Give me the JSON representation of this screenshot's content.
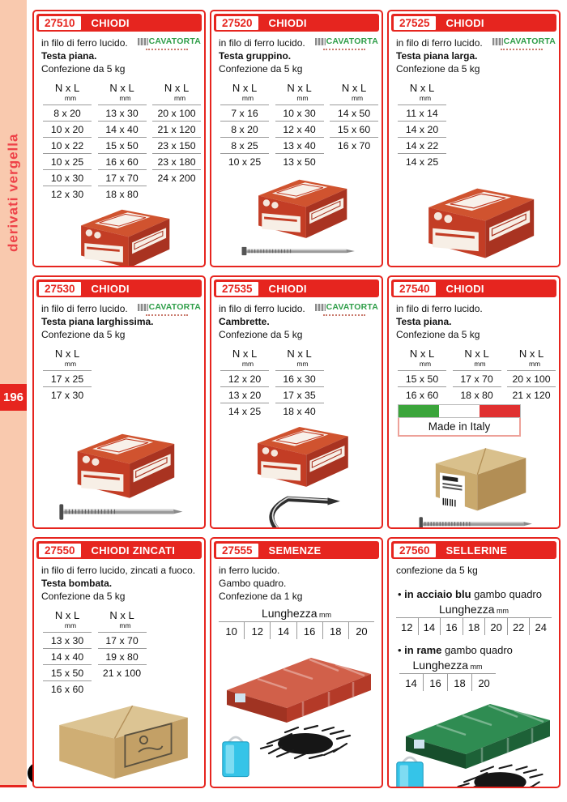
{
  "page": {
    "number": "196",
    "sidebar_label": "derivati vergella",
    "logo_letter": "C"
  },
  "brand": {
    "name": "CAVATORTA"
  },
  "labels": {
    "nxl": "N x L",
    "mm": "mm"
  },
  "cells": [
    {
      "code": "27510",
      "title": "CHIODI",
      "desc": [
        {
          "t": "in filo di ferro lucido.",
          "b": false
        },
        {
          "t": "Testa piana.",
          "b": true
        },
        {
          "t": "Confezione da 5 kg",
          "b": false
        }
      ],
      "size_cols": [
        [
          "8 x 20",
          "10 x 20",
          "10 x 22",
          "10 x 25",
          "10 x 30",
          "12 x 30"
        ],
        [
          "13 x 30",
          "14 x 40",
          "15 x 50",
          "16 x 60",
          "17 x 70",
          "18 x 80"
        ],
        [
          "20 x 100",
          "21 x 120",
          "23 x 150",
          "23 x 180",
          "24 x 200"
        ]
      ]
    },
    {
      "code": "27520",
      "title": "CHIODI",
      "desc": [
        {
          "t": "in filo di ferro lucido.",
          "b": false
        },
        {
          "t": "Testa gruppino.",
          "b": true
        },
        {
          "t": "Confezione da 5 kg",
          "b": false
        }
      ],
      "size_cols": [
        [
          "7 x 16",
          "8 x 20",
          "8 x 25",
          "10 x 25"
        ],
        [
          "10 x 30",
          "12 x 40",
          "13 x 40",
          "13 x 50"
        ],
        [
          "14 x 50",
          "15 x 60",
          "16 x 70"
        ]
      ]
    },
    {
      "code": "27525",
      "title": "CHIODI",
      "desc": [
        {
          "t": "in filo di ferro lucido.",
          "b": false
        },
        {
          "t": "Testa piana larga.",
          "b": true
        },
        {
          "t": "Confezione da 5 kg",
          "b": false
        }
      ],
      "size_cols": [
        [
          "11 x 14",
          "14 x 20",
          "14 x 22",
          "14 x 25"
        ]
      ]
    },
    {
      "code": "27530",
      "title": "CHIODI",
      "desc": [
        {
          "t": "in filo di ferro lucido.",
          "b": false
        },
        {
          "t": "Testa piana larghissima.",
          "b": true
        },
        {
          "t": "Confezione da 5 kg",
          "b": false
        }
      ],
      "size_cols": [
        [
          "17 x 25",
          "17 x 30"
        ]
      ]
    },
    {
      "code": "27535",
      "title": "CHIODI",
      "desc": [
        {
          "t": "in filo di ferro lucido.",
          "b": false
        },
        {
          "t": "Cambrette.",
          "b": true
        },
        {
          "t": "Confezione da 5 kg",
          "b": false
        }
      ],
      "size_cols": [
        [
          "12 x 20",
          "13 x 20",
          "14 x 25"
        ],
        [
          "16 x 30",
          "17 x 35",
          "18 x 40"
        ]
      ]
    },
    {
      "code": "27540",
      "title": "CHIODI",
      "desc": [
        {
          "t": "in filo di ferro lucido.",
          "b": false
        },
        {
          "t": "Testa piana.",
          "b": true
        },
        {
          "t": "Confezione da 5 kg",
          "b": false
        }
      ],
      "size_cols": [
        [
          "15 x 50",
          "16 x 60"
        ],
        [
          "17 x 70",
          "18 x 80"
        ],
        [
          "20 x 100",
          "21 x 120"
        ]
      ],
      "made_in_italy": "Made in Italy"
    },
    {
      "code": "27550",
      "title": "CHIODI ZINCATI",
      "desc": [
        {
          "t": "in filo di ferro lucido, zincati a fuoco.",
          "b": false
        },
        {
          "t": "Testa bombata.",
          "b": true
        },
        {
          "t": "Confezione da 5 kg",
          "b": false
        }
      ],
      "size_cols": [
        [
          "13 x 30",
          "14 x 40",
          "15 x 50",
          "16 x 60"
        ],
        [
          "17 x 70",
          "19 x 80",
          "21 x 100"
        ]
      ]
    },
    {
      "code": "27555",
      "title": "SEMENZE",
      "desc": [
        {
          "t": "in ferro lucido.",
          "b": false
        },
        {
          "t": "Gambo quadro.",
          "b": false
        },
        {
          "t": "Confezione da 1 kg",
          "b": false
        }
      ],
      "variants": [
        {
          "label": "Lunghezza",
          "unit": "mm",
          "values": [
            "10",
            "12",
            "14",
            "16",
            "18",
            "20"
          ]
        }
      ]
    },
    {
      "code": "27560",
      "title": "SELLERINE",
      "desc": [
        {
          "t": "confezione da 5 kg",
          "b": false
        }
      ],
      "variants": [
        {
          "bullet": "•",
          "bold": "in acciaio blu",
          "rest": " gambo quadro",
          "label": "Lunghezza",
          "unit": "mm",
          "values": [
            "12",
            "14",
            "16",
            "18",
            "20",
            "22",
            "24"
          ]
        },
        {
          "bullet": "•",
          "bold": "in rame",
          "rest": " gambo quadro",
          "label": "Lunghezza",
          "unit": "mm",
          "values": [
            "14",
            "16",
            "18",
            "20"
          ]
        }
      ]
    }
  ]
}
